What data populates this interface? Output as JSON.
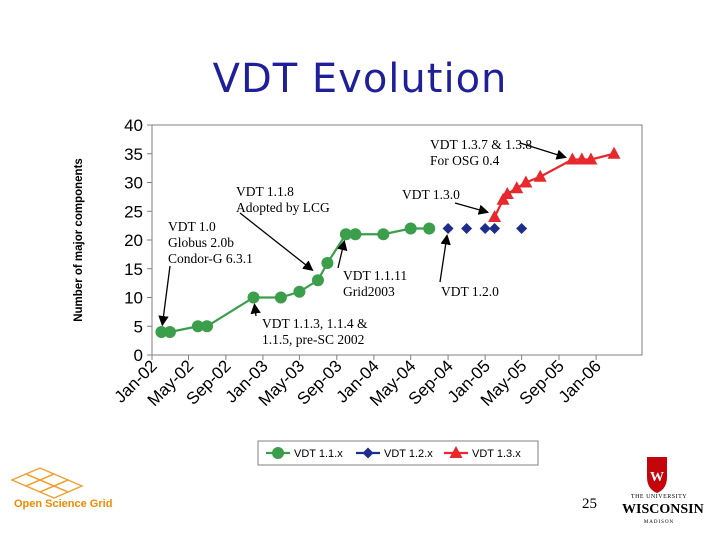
{
  "slide": {
    "title": "VDT Evolution",
    "page_number": "25",
    "osg_logo_text": "Open Science Grid",
    "uw_logo_text_top": "THE UNIVERSITY",
    "uw_logo_text_main": "WISCONSIN",
    "uw_logo_text_bottom": "MADISON"
  },
  "chart_data": {
    "type": "line",
    "ylabel": "Number of major components",
    "xlabel": "",
    "ylim": [
      0,
      40
    ],
    "yticks": [
      0,
      5,
      10,
      15,
      20,
      25,
      30,
      35,
      40
    ],
    "xlim": [
      "2002-01-01",
      "2006-06-01"
    ],
    "xticks": [
      "Jan-02",
      "May-02",
      "Sep-02",
      "Jan-03",
      "May-03",
      "Sep-03",
      "Jan-04",
      "May-04",
      "Sep-04",
      "Jan-05",
      "May-05",
      "Sep-05",
      "Jan-06"
    ],
    "xtick_dates": [
      "2002-01-01",
      "2002-05-01",
      "2002-09-01",
      "2003-01-01",
      "2003-05-01",
      "2003-09-01",
      "2004-01-01",
      "2004-05-01",
      "2004-09-01",
      "2005-01-01",
      "2005-05-01",
      "2005-09-01",
      "2006-01-01"
    ],
    "grid": false,
    "legend_position": "bottom",
    "series": [
      {
        "name": "VDT 1.1.x",
        "color": "#3a9e4a",
        "marker": "circle",
        "line": true,
        "points": [
          {
            "x": "2002-02-01",
            "y": 4
          },
          {
            "x": "2002-03-01",
            "y": 4
          },
          {
            "x": "2002-06-01",
            "y": 5
          },
          {
            "x": "2002-07-01",
            "y": 5
          },
          {
            "x": "2002-12-01",
            "y": 10
          },
          {
            "x": "2003-03-01",
            "y": 10
          },
          {
            "x": "2003-05-01",
            "y": 11
          },
          {
            "x": "2003-07-01",
            "y": 13
          },
          {
            "x": "2003-08-01",
            "y": 16
          },
          {
            "x": "2003-10-01",
            "y": 21
          },
          {
            "x": "2003-11-01",
            "y": 21
          },
          {
            "x": "2004-02-01",
            "y": 21
          },
          {
            "x": "2004-05-01",
            "y": 22
          },
          {
            "x": "2004-07-01",
            "y": 22
          }
        ]
      },
      {
        "name": "VDT 1.2.x",
        "color": "#1f2d8a",
        "marker": "diamond",
        "line": false,
        "points": [
          {
            "x": "2004-09-01",
            "y": 22
          },
          {
            "x": "2004-11-01",
            "y": 22
          },
          {
            "x": "2005-01-01",
            "y": 22
          },
          {
            "x": "2005-02-01",
            "y": 22
          },
          {
            "x": "2005-05-01",
            "y": 22
          }
        ]
      },
      {
        "name": "VDT 1.3.x",
        "color": "#e8282d",
        "marker": "triangle",
        "line": true,
        "points": [
          {
            "x": "2005-02-01",
            "y": 24
          },
          {
            "x": "2005-03-01",
            "y": 27
          },
          {
            "x": "2005-03-15",
            "y": 28
          },
          {
            "x": "2005-04-15",
            "y": 29
          },
          {
            "x": "2005-05-15",
            "y": 30
          },
          {
            "x": "2005-07-01",
            "y": 31
          },
          {
            "x": "2005-10-15",
            "y": 34
          },
          {
            "x": "2005-11-15",
            "y": 34
          },
          {
            "x": "2005-12-15",
            "y": 34
          },
          {
            "x": "2006-03-01",
            "y": 35
          }
        ]
      }
    ],
    "annotations": [
      {
        "lines": [
          "VDT 1.0",
          "Globus 2.0b",
          "Condor-G 6.3.1"
        ],
        "target": {
          "x": "2002-02-01",
          "y": 4
        }
      },
      {
        "lines": [
          "VDT 1.1.3, 1.1.4 &",
          "1.1.5, pre-SC 2002"
        ],
        "target": {
          "x": "2002-12-01",
          "y": 10
        }
      },
      {
        "lines": [
          "VDT 1.1.8",
          "Adopted by LCG"
        ],
        "target": {
          "x": "2003-07-01",
          "y": 14
        }
      },
      {
        "lines": [
          "VDT 1.1.11",
          "Grid2003"
        ],
        "target": {
          "x": "2003-10-01",
          "y": 21
        }
      },
      {
        "lines": [
          "VDT 1.2.0"
        ],
        "target": {
          "x": "2004-09-01",
          "y": 22
        }
      },
      {
        "lines": [
          "VDT 1.3.0"
        ],
        "target": {
          "x": "2005-02-01",
          "y": 24.5
        }
      },
      {
        "lines": [
          "VDT 1.3.7 & 1.3.8",
          "For OSG 0.4"
        ],
        "target": {
          "x": "2005-10-15",
          "y": 34
        }
      }
    ]
  }
}
